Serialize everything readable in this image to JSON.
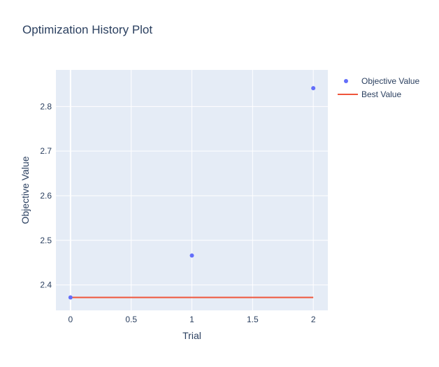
{
  "chart_data": {
    "type": "scatter",
    "title": "Optimization History Plot",
    "xlabel": "Trial",
    "ylabel": "Objective Value",
    "xlim": [
      -0.12,
      2.12
    ],
    "ylim": [
      2.343,
      2.882
    ],
    "x_ticks": [
      0,
      0.5,
      1,
      1.5,
      2
    ],
    "x_tick_labels": [
      "0",
      "0.5",
      "1",
      "1.5",
      "2"
    ],
    "y_ticks": [
      2.4,
      2.5,
      2.6,
      2.7,
      2.8
    ],
    "y_tick_labels": [
      "2.4",
      "2.5",
      "2.6",
      "2.7",
      "2.8"
    ],
    "grid": true,
    "legend_position": "top-right",
    "background_color": "#e5ecf6",
    "series": [
      {
        "name": "Objective Value",
        "mode": "markers",
        "color": "#636efa",
        "x": [
          0,
          1,
          2
        ],
        "y": [
          2.372,
          2.466,
          2.841
        ]
      },
      {
        "name": "Best Value",
        "mode": "line",
        "color": "#ef553b",
        "x": [
          0,
          1,
          2
        ],
        "y": [
          2.372,
          2.372,
          2.372
        ]
      }
    ]
  }
}
